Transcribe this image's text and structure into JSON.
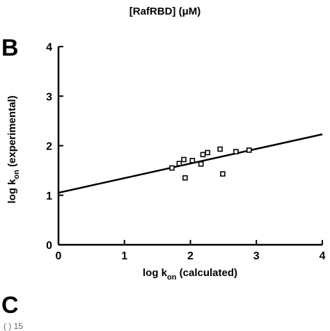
{
  "top_label": "[RafRBD] (μM)",
  "panels": {
    "b": "B",
    "c": "C"
  },
  "chart_data": {
    "type": "scatter",
    "xlabel_main": "log k",
    "xlabel_sub": "on",
    "xlabel_rest": " (calculated)",
    "ylabel_main": "log k",
    "ylabel_sub": "on",
    "ylabel_rest": " (experimental)",
    "xlim": [
      0,
      4
    ],
    "ylim": [
      0,
      4
    ],
    "xticks": [
      0,
      1,
      2,
      3,
      4
    ],
    "yticks": [
      0,
      1,
      2,
      3,
      4
    ],
    "points": [
      {
        "x": 1.72,
        "y": 1.55
      },
      {
        "x": 1.83,
        "y": 1.64
      },
      {
        "x": 1.9,
        "y": 1.72
      },
      {
        "x": 1.92,
        "y": 1.35
      },
      {
        "x": 2.03,
        "y": 1.7
      },
      {
        "x": 2.16,
        "y": 1.63
      },
      {
        "x": 2.19,
        "y": 1.82
      },
      {
        "x": 2.26,
        "y": 1.86
      },
      {
        "x": 2.45,
        "y": 1.93
      },
      {
        "x": 2.49,
        "y": 1.43
      },
      {
        "x": 2.69,
        "y": 1.88
      },
      {
        "x": 2.89,
        "y": 1.91
      }
    ],
    "fit_line": {
      "intercept": 1.05,
      "slope": 0.295
    }
  }
}
